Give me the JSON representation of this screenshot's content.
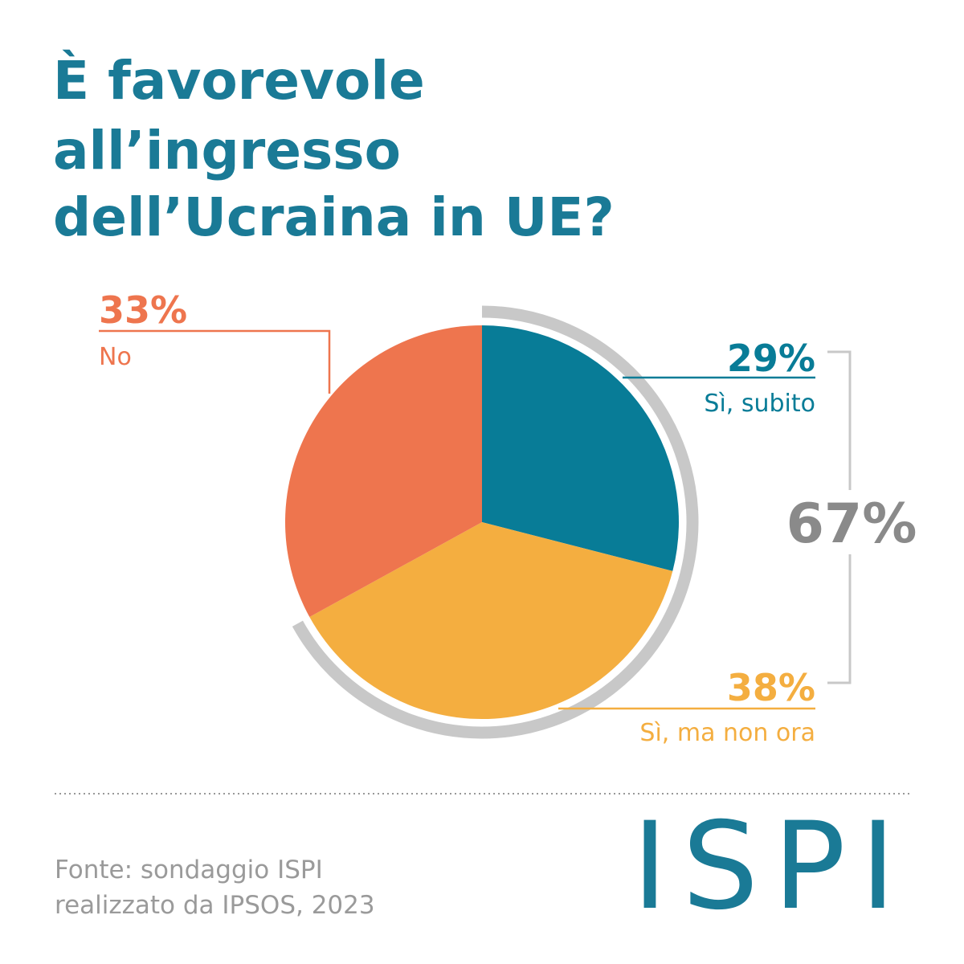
{
  "chart_data": {
    "type": "pie",
    "title": [
      "È favorevole",
      "all’ingresso",
      "dell’Ucraina in UE?"
    ],
    "categories": [
      "Sì, subito",
      "Sì, ma non ora",
      "No"
    ],
    "values": [
      29,
      38,
      33
    ],
    "value_labels": [
      "29%",
      "38%",
      "33%"
    ],
    "colors": [
      "#087c97",
      "#f4ae40",
      "#ee754e"
    ],
    "group": {
      "value": 67,
      "label": "67%",
      "color": "#c8c8c8"
    },
    "source": [
      "Fonte: sondaggio ISPI",
      "realizzato da IPSOS, 2023"
    ],
    "logo": "ISPI"
  }
}
